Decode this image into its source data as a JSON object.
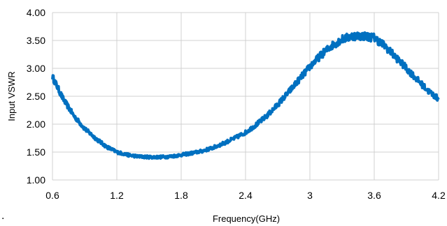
{
  "chart_data": {
    "type": "line",
    "xlabel": "Frequency(GHz)",
    "ylabel": "Input VSWR",
    "xlim": [
      0.6,
      4.2
    ],
    "ylim": [
      1.0,
      4.0
    ],
    "x_ticks": [
      "0.6",
      "1.2",
      "1.8",
      "2.4",
      "3",
      "3.6",
      "4.2"
    ],
    "y_ticks": [
      "1.00",
      "1.50",
      "2.00",
      "2.50",
      "3.00",
      "3.50",
      "4.00"
    ],
    "grid": true,
    "legend": "none",
    "series_color": "#0070C0",
    "series": [
      {
        "x": [
          0.6,
          0.7,
          0.8,
          0.9,
          1.0,
          1.1,
          1.2,
          1.3,
          1.4,
          1.5,
          1.6,
          1.7,
          1.8,
          1.9,
          2.0,
          2.1,
          2.2,
          2.3,
          2.4,
          2.5,
          2.6,
          2.7,
          2.8,
          2.9,
          3.0,
          3.1,
          3.2,
          3.3,
          3.4,
          3.5,
          3.6,
          3.7,
          3.8,
          3.9,
          4.0,
          4.1,
          4.2
        ],
        "values": [
          2.85,
          2.45,
          2.15,
          1.92,
          1.75,
          1.6,
          1.5,
          1.45,
          1.42,
          1.41,
          1.41,
          1.42,
          1.45,
          1.48,
          1.52,
          1.58,
          1.66,
          1.75,
          1.85,
          1.99,
          2.15,
          2.35,
          2.57,
          2.8,
          3.03,
          3.23,
          3.4,
          3.52,
          3.58,
          3.58,
          3.55,
          3.4,
          3.2,
          3.0,
          2.8,
          2.6,
          2.45
        ]
      }
    ]
  },
  "page_mark": "."
}
